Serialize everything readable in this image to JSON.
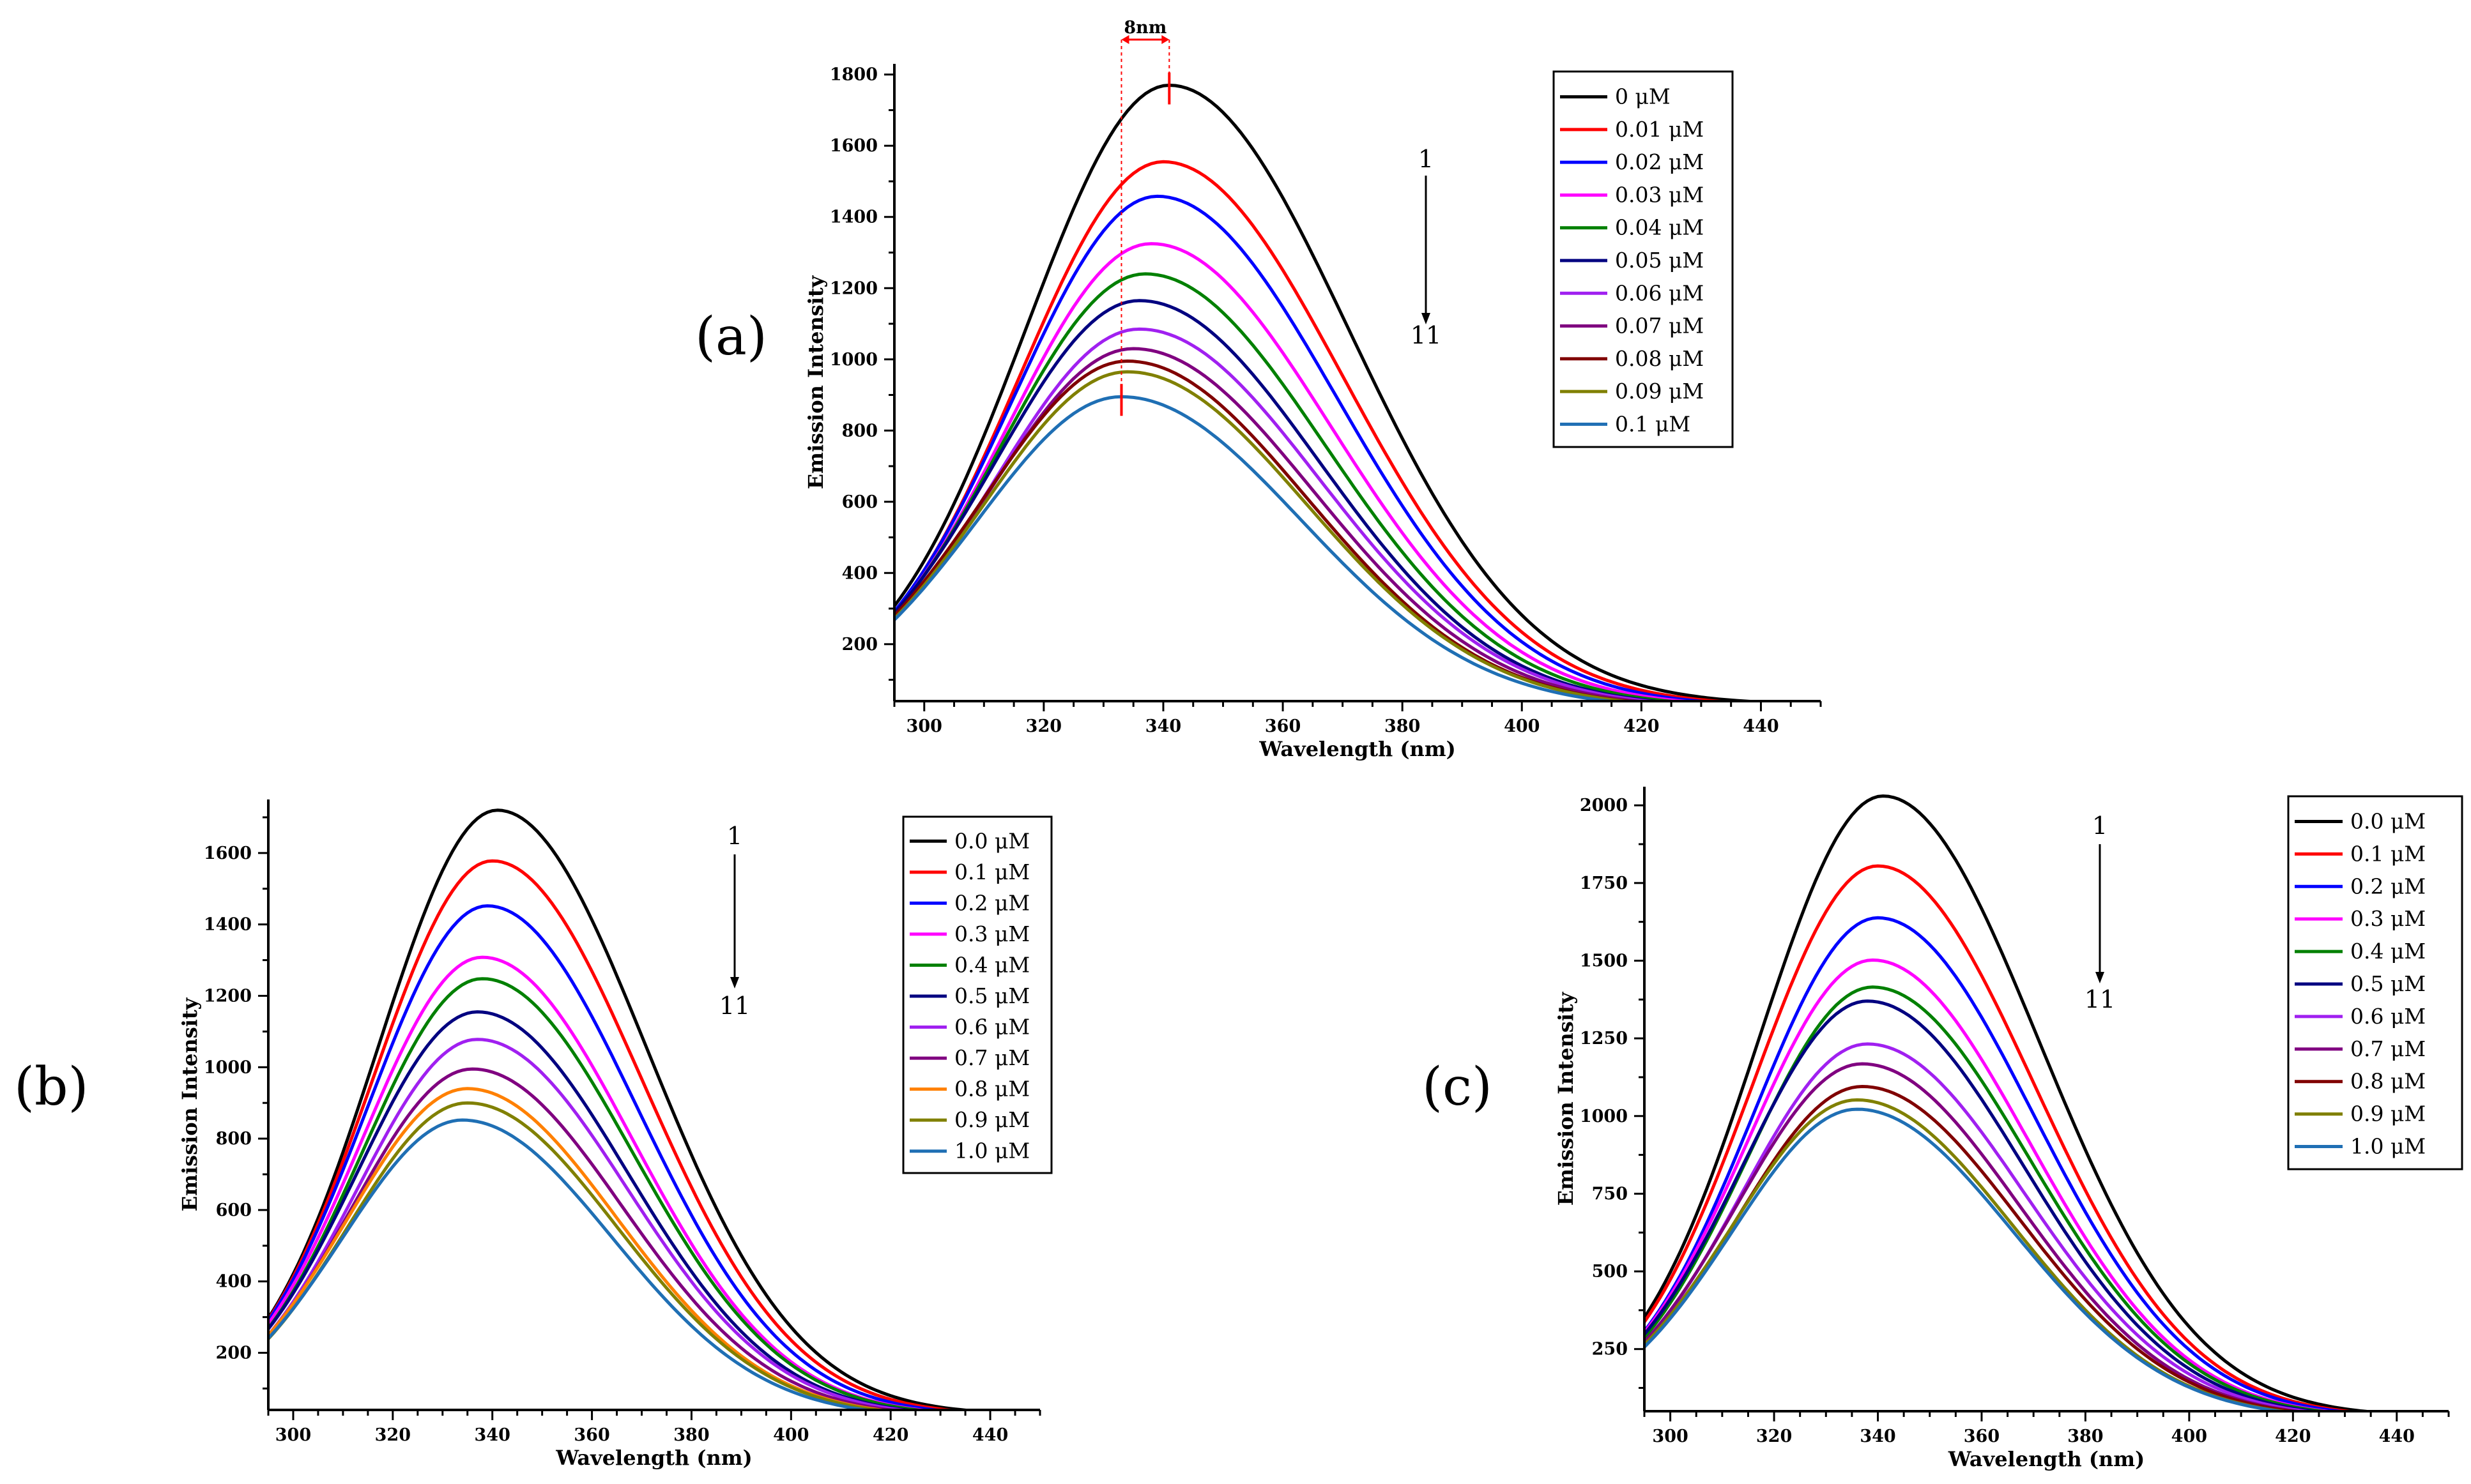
{
  "figure": {
    "description_free": true,
    "arrow_start": "1",
    "arrow_end": "11",
    "shift_annotation": "8nm"
  },
  "chart_data": [
    {
      "panel": "(a)",
      "type": "line",
      "xlabel": "Wavelength (nm)",
      "ylabel": "Emission Intensity",
      "xlim": [
        295,
        450
      ],
      "ylim": [
        40,
        1830
      ],
      "xticks": [
        300,
        320,
        340,
        360,
        380,
        400,
        420,
        440
      ],
      "yticks": [
        200,
        400,
        600,
        800,
        1000,
        1200,
        1400,
        1600,
        1800
      ],
      "legend_position": "top-right",
      "series": [
        {
          "name": "0 μM",
          "color": "#000000",
          "peak_x": 341,
          "peak_y": 1770,
          "start_y": 290,
          "end_y": 50
        },
        {
          "name": "0.01 μM",
          "color": "#ff0000",
          "peak_x": 340,
          "peak_y": 1555,
          "start_y": 290,
          "end_y": 45
        },
        {
          "name": "0.02 μM",
          "color": "#0000ff",
          "peak_x": 339,
          "peak_y": 1458,
          "start_y": 290,
          "end_y": 42
        },
        {
          "name": "0.03 μM",
          "color": "#ff00ff",
          "peak_x": 338,
          "peak_y": 1325,
          "start_y": 290,
          "end_y": 40
        },
        {
          "name": "0.04 μM",
          "color": "#008000",
          "peak_x": 337,
          "peak_y": 1240,
          "start_y": 290,
          "end_y": 38
        },
        {
          "name": "0.05 μM",
          "color": "#000080",
          "peak_x": 336,
          "peak_y": 1165,
          "start_y": 290,
          "end_y": 36
        },
        {
          "name": "0.06 μM",
          "color": "#a020f0",
          "peak_x": 336,
          "peak_y": 1085,
          "start_y": 290,
          "end_y": 35
        },
        {
          "name": "0.07 μM",
          "color": "#800080",
          "peak_x": 335,
          "peak_y": 1030,
          "start_y": 290,
          "end_y": 34
        },
        {
          "name": "0.08 μM",
          "color": "#800000",
          "peak_x": 334,
          "peak_y": 995,
          "start_y": 290,
          "end_y": 33
        },
        {
          "name": "0.09 μM",
          "color": "#808000",
          "peak_x": 334,
          "peak_y": 965,
          "start_y": 290,
          "end_y": 32
        },
        {
          "name": "0.1 μM",
          "color": "#1f6fb4",
          "peak_x": 333,
          "peak_y": 895,
          "start_y": 290,
          "end_y": 30
        }
      ]
    },
    {
      "panel": "(b)",
      "type": "line",
      "xlabel": "Wavelength (nm)",
      "ylabel": "Emission Intensity",
      "xlim": [
        295,
        450
      ],
      "ylim": [
        40,
        1750
      ],
      "xticks": [
        300,
        320,
        340,
        360,
        380,
        400,
        420,
        440
      ],
      "yticks": [
        200,
        400,
        600,
        800,
        1000,
        1200,
        1400,
        1600
      ],
      "legend_position": "top-right",
      "series": [
        {
          "name": "0.0 μM",
          "color": "#000000",
          "peak_x": 341,
          "peak_y": 1720,
          "start_y": 290,
          "end_y": 45
        },
        {
          "name": "0.1 μM",
          "color": "#ff0000",
          "peak_x": 340,
          "peak_y": 1578,
          "start_y": 290,
          "end_y": 42
        },
        {
          "name": "0.2 μM",
          "color": "#0000ff",
          "peak_x": 339,
          "peak_y": 1452,
          "start_y": 290,
          "end_y": 40
        },
        {
          "name": "0.3 μM",
          "color": "#ff00ff",
          "peak_x": 338,
          "peak_y": 1308,
          "start_y": 290,
          "end_y": 38
        },
        {
          "name": "0.4 μM",
          "color": "#008000",
          "peak_x": 338,
          "peak_y": 1248,
          "start_y": 290,
          "end_y": 37
        },
        {
          "name": "0.5 μM",
          "color": "#000080",
          "peak_x": 337,
          "peak_y": 1155,
          "start_y": 290,
          "end_y": 36
        },
        {
          "name": "0.6 μM",
          "color": "#a020f0",
          "peak_x": 337,
          "peak_y": 1078,
          "start_y": 290,
          "end_y": 35
        },
        {
          "name": "0.7 μM",
          "color": "#800080",
          "peak_x": 336,
          "peak_y": 995,
          "start_y": 290,
          "end_y": 34
        },
        {
          "name": "0.8 μM",
          "color": "#ff8000",
          "peak_x": 335,
          "peak_y": 940,
          "start_y": 290,
          "end_y": 33
        },
        {
          "name": "0.9 μM",
          "color": "#808000",
          "peak_x": 335,
          "peak_y": 900,
          "start_y": 285,
          "end_y": 32
        },
        {
          "name": "1.0 μM",
          "color": "#1f6fb4",
          "peak_x": 334,
          "peak_y": 852,
          "start_y": 280,
          "end_y": 30
        }
      ]
    },
    {
      "panel": "(c)",
      "type": "line",
      "xlabel": "Wavelength (nm)",
      "ylabel": "Emission Intensity",
      "xlim": [
        295,
        450
      ],
      "ylim": [
        50,
        2060
      ],
      "xticks": [
        300,
        320,
        340,
        360,
        380,
        400,
        420,
        440
      ],
      "yticks": [
        250,
        500,
        750,
        1000,
        1250,
        1500,
        1750,
        2000
      ],
      "legend_position": "top-right",
      "series": [
        {
          "name": "0.0 μM",
          "color": "#000000",
          "peak_x": 341,
          "peak_y": 2030,
          "start_y": 310,
          "end_y": 55
        },
        {
          "name": "0.1 μM",
          "color": "#ff0000",
          "peak_x": 340,
          "peak_y": 1805,
          "start_y": 310,
          "end_y": 52
        },
        {
          "name": "0.2 μM",
          "color": "#0000ff",
          "peak_x": 340,
          "peak_y": 1638,
          "start_y": 310,
          "end_y": 50
        },
        {
          "name": "0.3 μM",
          "color": "#ff00ff",
          "peak_x": 339,
          "peak_y": 1502,
          "start_y": 310,
          "end_y": 48
        },
        {
          "name": "0.4 μM",
          "color": "#008000",
          "peak_x": 339,
          "peak_y": 1415,
          "start_y": 310,
          "end_y": 47
        },
        {
          "name": "0.5 μM",
          "color": "#000080",
          "peak_x": 338,
          "peak_y": 1370,
          "start_y": 310,
          "end_y": 46
        },
        {
          "name": "0.6 μM",
          "color": "#a020f0",
          "peak_x": 338,
          "peak_y": 1232,
          "start_y": 305,
          "end_y": 45
        },
        {
          "name": "0.7 μM",
          "color": "#800080",
          "peak_x": 337,
          "peak_y": 1168,
          "start_y": 305,
          "end_y": 44
        },
        {
          "name": "0.8 μM",
          "color": "#800000",
          "peak_x": 337,
          "peak_y": 1095,
          "start_y": 300,
          "end_y": 43
        },
        {
          "name": "0.9 μM",
          "color": "#808000",
          "peak_x": 336,
          "peak_y": 1052,
          "start_y": 300,
          "end_y": 42
        },
        {
          "name": "1.0 μM",
          "color": "#1f6fb4",
          "peak_x": 336,
          "peak_y": 1022,
          "start_y": 300,
          "end_y": 41
        }
      ]
    }
  ]
}
